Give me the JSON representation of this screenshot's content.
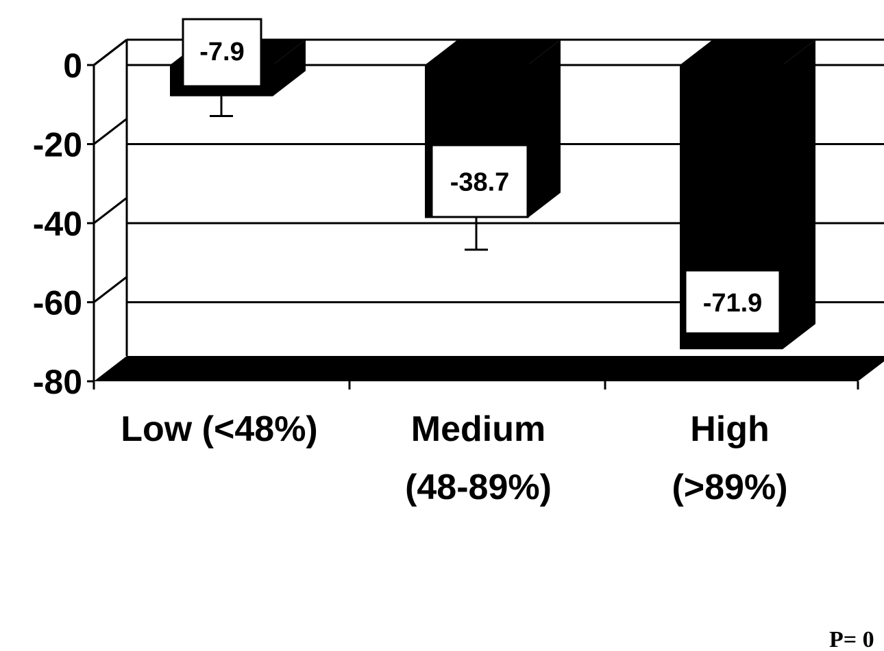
{
  "chart_data": {
    "type": "bar",
    "style": "3d-column",
    "categories": [
      [
        "Low (<48%)"
      ],
      [
        "Medium",
        "(48-89%)"
      ],
      [
        "High",
        "(>89%)"
      ]
    ],
    "values": [
      -7.9,
      -38.7,
      -71.9
    ],
    "data_labels": [
      "-7.9",
      "-38.7",
      "-71.9"
    ],
    "error_bars": [
      -12.9,
      -46.7,
      null
    ],
    "y_ticks": [
      "0",
      "-20",
      "-40",
      "-60",
      "-80"
    ],
    "ylim": [
      -80,
      0
    ],
    "grid": true,
    "bar_color": "#000000",
    "footnote": "P= 0"
  }
}
